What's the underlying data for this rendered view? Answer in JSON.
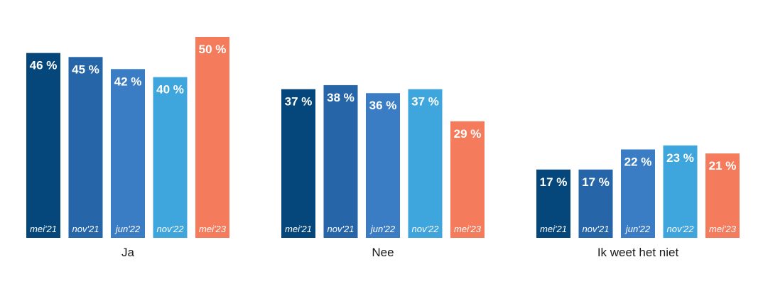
{
  "chart_data": {
    "type": "bar",
    "categories": [
      "Ja",
      "Nee",
      "Ik weet het niet"
    ],
    "series": [
      {
        "name": "mei'21",
        "values": [
          46,
          37,
          17
        ],
        "color": "#05477a"
      },
      {
        "name": "nov'21",
        "values": [
          45,
          38,
          17
        ],
        "color": "#2565a8"
      },
      {
        "name": "jun'22",
        "values": [
          42,
          36,
          22
        ],
        "color": "#3b7dc4"
      },
      {
        "name": "nov'22",
        "values": [
          40,
          37,
          23
        ],
        "color": "#3ea6dd"
      },
      {
        "name": "mei'23",
        "values": [
          50,
          29,
          21
        ],
        "color": "#f47b5c"
      }
    ],
    "value_suffix": " %",
    "ylim": [
      0,
      55
    ],
    "title": "",
    "xlabel": "",
    "ylabel": "",
    "grid": false,
    "legend": "none"
  }
}
